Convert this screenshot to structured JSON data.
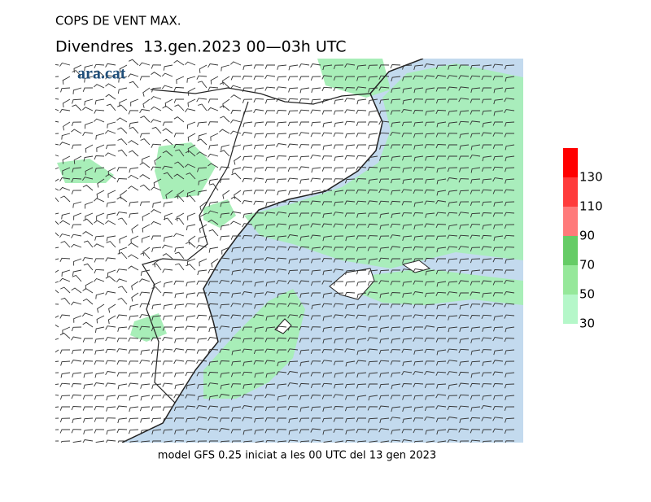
{
  "header": {
    "title": "COPS DE VENT MAX.",
    "subtitle": "Divendres  13.gen.2023 00—03h UTC",
    "logo": "ara.cat"
  },
  "legend": {
    "ticks": [
      30,
      50,
      70,
      90,
      110,
      130
    ],
    "colors": [
      "#b5f7c9",
      "#96e89a",
      "#66cc66",
      "#ff7a7a",
      "#ff3b3b",
      "#ff0000"
    ]
  },
  "footer": "model GFS 0.25 iniciat a les 00 UTC del 13 gen 2023"
}
